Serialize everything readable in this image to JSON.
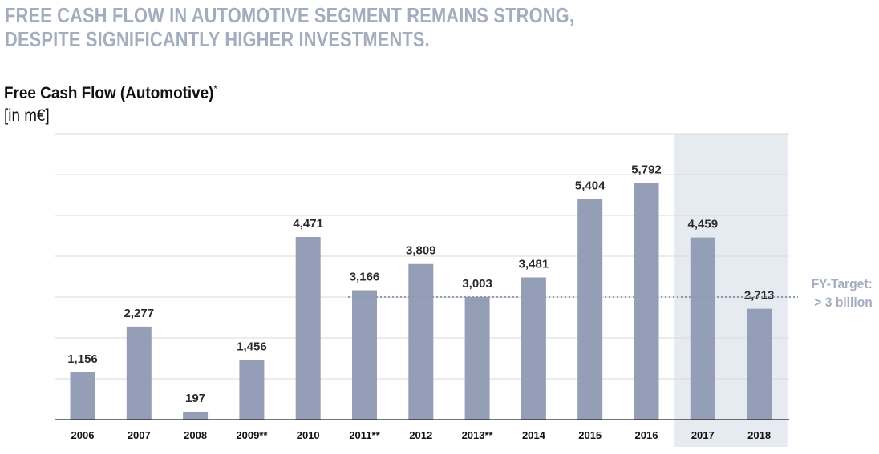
{
  "headline": {
    "line1": "FREE CASH FLOW IN AUTOMOTIVE SEGMENT REMAINS STRONG,",
    "line2": "DESPITE SIGNIFICANTLY HIGHER INVESTMENTS."
  },
  "colors": {
    "bar": "#949fb7",
    "forecast_background": "#e6eaf1",
    "headline": "#a3adbe",
    "gridline": "#d9d9d9",
    "target_line": "#8e9ab0"
  },
  "chart_data": {
    "type": "bar",
    "title": "Free Cash Flow (Automotive)",
    "title_marker": "*",
    "unit_label": "[in m€]",
    "categories": [
      "2006",
      "2007",
      "2008",
      "2009**",
      "2010",
      "2011**",
      "2012",
      "2013**",
      "2014",
      "2015",
      "2016",
      "2017",
      "2018"
    ],
    "values": [
      1156,
      2277,
      197,
      1456,
      4471,
      3166,
      3809,
      3003,
      3481,
      5404,
      5792,
      4459,
      2713
    ],
    "value_labels": [
      "1,156",
      "2,277",
      "197",
      "1,456",
      "4,471",
      "3,166",
      "3,809",
      "3,003",
      "3,481",
      "5,404",
      "5,792",
      "4,459",
      "2,713"
    ],
    "ylim": [
      0,
      7000
    ],
    "grid": true,
    "highlighted_categories": [
      "2017",
      "2018"
    ],
    "target": {
      "value": 3000,
      "line1": "FY-Target:",
      "line2": "> 3 billion"
    }
  }
}
